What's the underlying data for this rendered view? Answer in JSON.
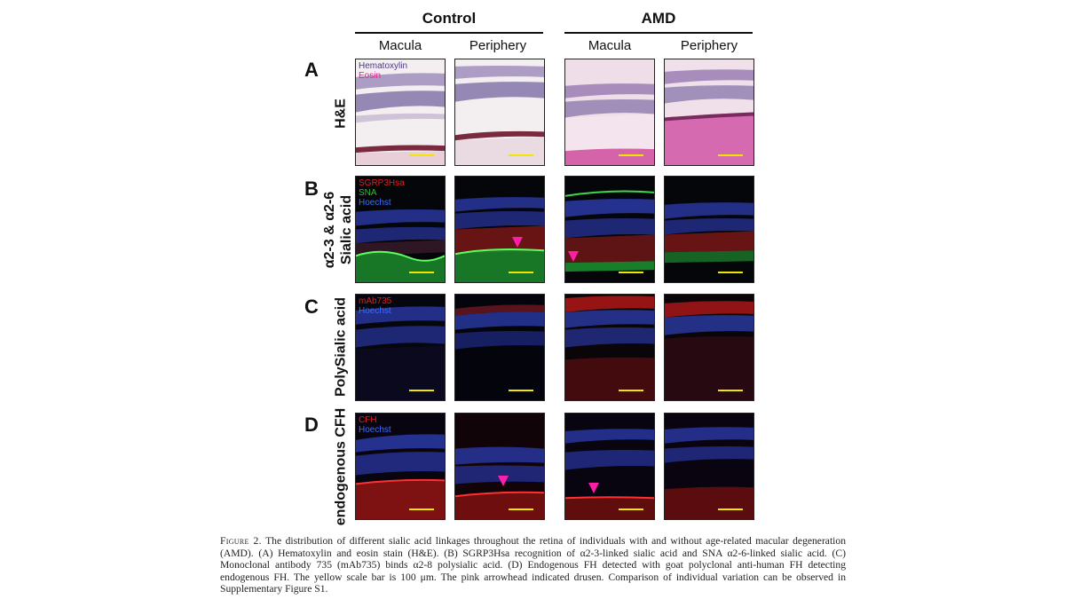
{
  "figure": {
    "groups": [
      "Control",
      "AMD"
    ],
    "columns": [
      "Macula",
      "Periphery",
      "Macula",
      "Periphery"
    ],
    "rows": [
      {
        "letter": "A",
        "label_lines": [
          "H&E"
        ],
        "legend": [
          "Hematoxylin",
          "Eosin"
        ],
        "legend_colors": [
          "#4b3a86",
          "#e0208c"
        ]
      },
      {
        "letter": "B",
        "label_lines": [
          "α2-3 & α2-6",
          "Sialic acid"
        ],
        "legend": [
          "SGRP3Hsa",
          "SNA",
          "Hoechst"
        ],
        "legend_colors": [
          "#e02020",
          "#2fbf2f",
          "#3b6cff"
        ]
      },
      {
        "letter": "C",
        "label_lines": [
          "PolySialic acid"
        ],
        "legend": [
          "mAb735",
          "Hoechst"
        ],
        "legend_colors": [
          "#e02020",
          "#3b6cff"
        ]
      },
      {
        "letter": "D",
        "label_lines": [
          "endogenous CFH"
        ],
        "legend": [
          "CFH",
          "Hoechst"
        ],
        "legend_colors": [
          "#e02020",
          "#3b6cff"
        ]
      }
    ],
    "colors": {
      "scale_bar": "#f2e600",
      "arrowhead": "#ff1ea8"
    }
  },
  "caption": {
    "label": "Figure 2.",
    "text": "The distribution of different sialic acid linkages throughout the retina of individuals with and without age-related macular degeneration (AMD). (A) Hematoxylin and eosin stain (H&E). (B) SGRP3Hsa recognition of α2-3-linked sialic acid and SNA α2-6-linked sialic acid. (C) Monoclonal antibody 735 (mAb735) binds α2-8 polysialic acid. (D) Endogenous FH detected with goat polyclonal anti-human FH detecting endogenous FH. The yellow scale bar is 100 μm. The pink arrowhead indicated drusen. Comparison of individual variation can be observed in Supplementary Figure S1."
  }
}
